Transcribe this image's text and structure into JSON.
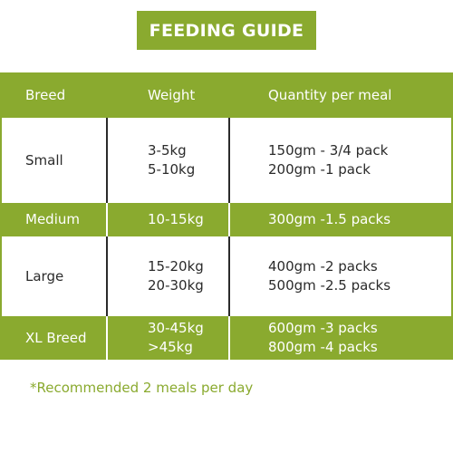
{
  "title": "FEEDING GUIDE",
  "colors": {
    "accent": "#8aaa2f",
    "text": "#2b2b2b",
    "background": "#ffffff"
  },
  "table": {
    "headers": {
      "breed": "Breed",
      "weight": "Weight",
      "quantity": "Quantity per meal"
    },
    "rows": [
      {
        "breed": "Small",
        "weights": [
          "3-5kg",
          "5-10kg"
        ],
        "quantities": [
          "150gm - 3/4 pack",
          "200gm -1 pack"
        ]
      },
      {
        "breed": "Medium",
        "weights": [
          "10-15kg"
        ],
        "quantities": [
          "300gm -1.5 packs"
        ]
      },
      {
        "breed": "Large",
        "weights": [
          "15-20kg",
          "20-30kg"
        ],
        "quantities": [
          "400gm -2 packs",
          "500gm -2.5 packs"
        ]
      },
      {
        "breed": "XL Breed",
        "weights": [
          "30-45kg",
          ">45kg"
        ],
        "quantities": [
          "600gm -3 packs",
          "800gm -4 packs"
        ]
      }
    ]
  },
  "footnote": "*Recommended 2 meals per day"
}
